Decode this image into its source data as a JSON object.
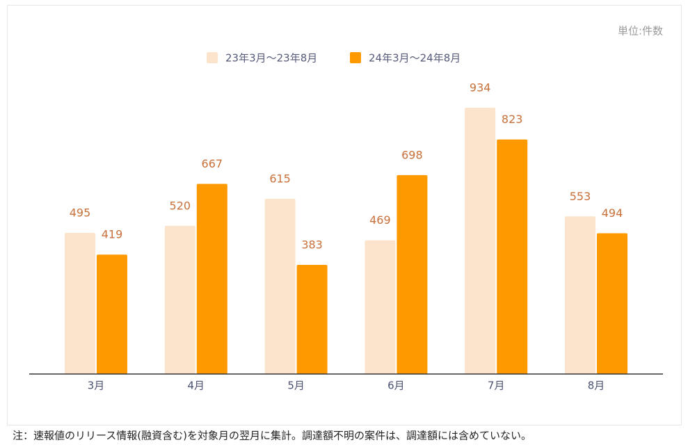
{
  "chart_data": {
    "type": "bar",
    "unit_label": "単位:件数",
    "categories": [
      "3月",
      "4月",
      "5月",
      "6月",
      "7月",
      "8月"
    ],
    "series": [
      {
        "name": "23年3月～23年8月",
        "color": "#fce4cc",
        "values": [
          495,
          520,
          615,
          469,
          934,
          553
        ]
      },
      {
        "name": "24年3月～24年8月",
        "color": "#ff9900",
        "values": [
          419,
          667,
          383,
          698,
          823,
          494
        ]
      }
    ],
    "ylim": [
      0,
      1000
    ],
    "value_label_color": "#c8703a",
    "legend": "top",
    "note": "注：速報値のリリース情報(融資含む)を対象月の翌月に集計。調達額不明の案件は、調達額には含めていない。"
  }
}
